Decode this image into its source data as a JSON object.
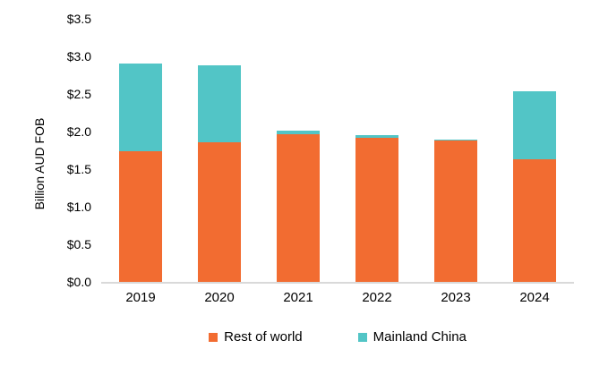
{
  "chart_data": {
    "type": "bar",
    "stacked": true,
    "title": "",
    "xlabel": "",
    "ylabel": "Billion AUD FOB",
    "categories": [
      "2019",
      "2020",
      "2021",
      "2022",
      "2023",
      "2024"
    ],
    "series": [
      {
        "name": "Rest of world",
        "color": "#F26C31",
        "values": [
          1.74,
          1.86,
          1.96,
          1.92,
          1.88,
          1.63
        ]
      },
      {
        "name": "Mainland China",
        "color": "#52C5C6",
        "values": [
          1.17,
          1.02,
          0.05,
          0.03,
          0.01,
          0.91
        ]
      }
    ],
    "ylim": [
      0,
      3.5
    ],
    "ytick_step": 0.5,
    "yticks": [
      {
        "label": "$0.0",
        "value": 0.0
      },
      {
        "label": "$0.5",
        "value": 0.5
      },
      {
        "label": "$1.0",
        "value": 1.0
      },
      {
        "label": "$1.5",
        "value": 1.5
      },
      {
        "label": "$2.0",
        "value": 2.0
      },
      {
        "label": "$2.5",
        "value": 2.5
      },
      {
        "label": "$3.0",
        "value": 3.0
      },
      {
        "label": "$3.5",
        "value": 3.5
      }
    ],
    "grid": false,
    "legend_position": "bottom",
    "axis_line_color": "#D9D9D9",
    "text_color": "#000000",
    "background_color": "#FFFFFF"
  }
}
